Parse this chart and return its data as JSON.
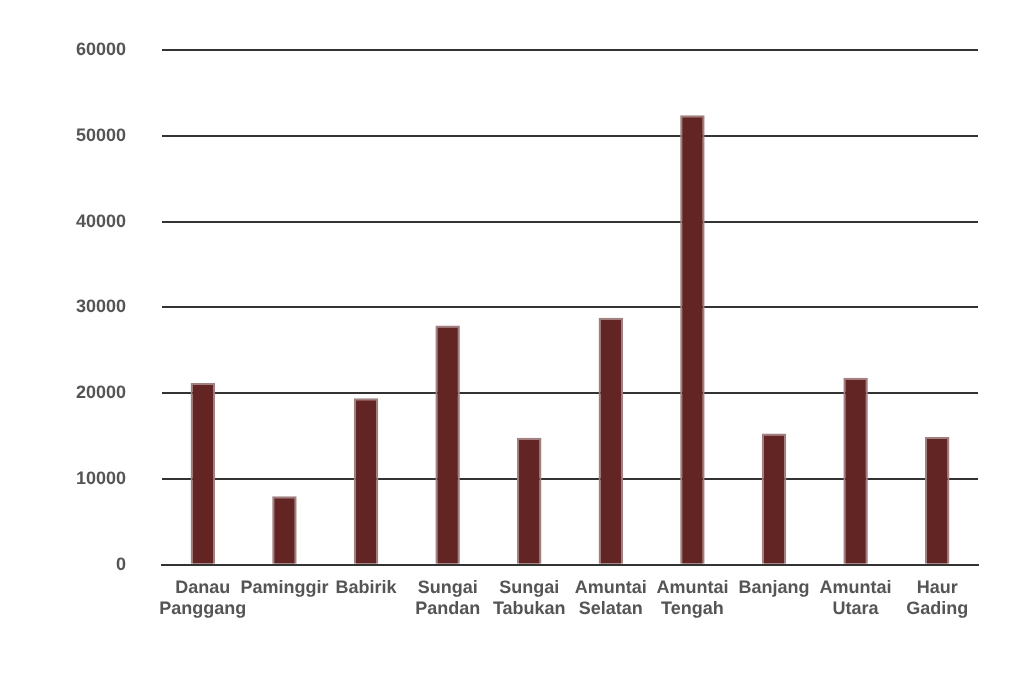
{
  "chart_data": {
    "type": "bar",
    "categories": [
      "Danau Panggang",
      "Paminggir",
      "Babirik",
      "Sungai Pandan",
      "Sungai Tabukan",
      "Amuntai Selatan",
      "Amuntai Tengah",
      "Banjang",
      "Amuntai Utara",
      "Haur Gading"
    ],
    "values": [
      21200,
      8000,
      19400,
      27900,
      14800,
      28800,
      52400,
      15300,
      21800,
      14900
    ],
    "color": "#632523",
    "ylim": [
      0,
      60000
    ],
    "yticks": [
      0,
      10000,
      20000,
      30000,
      40000,
      50000,
      60000
    ],
    "grid": "y",
    "legend": false
  }
}
